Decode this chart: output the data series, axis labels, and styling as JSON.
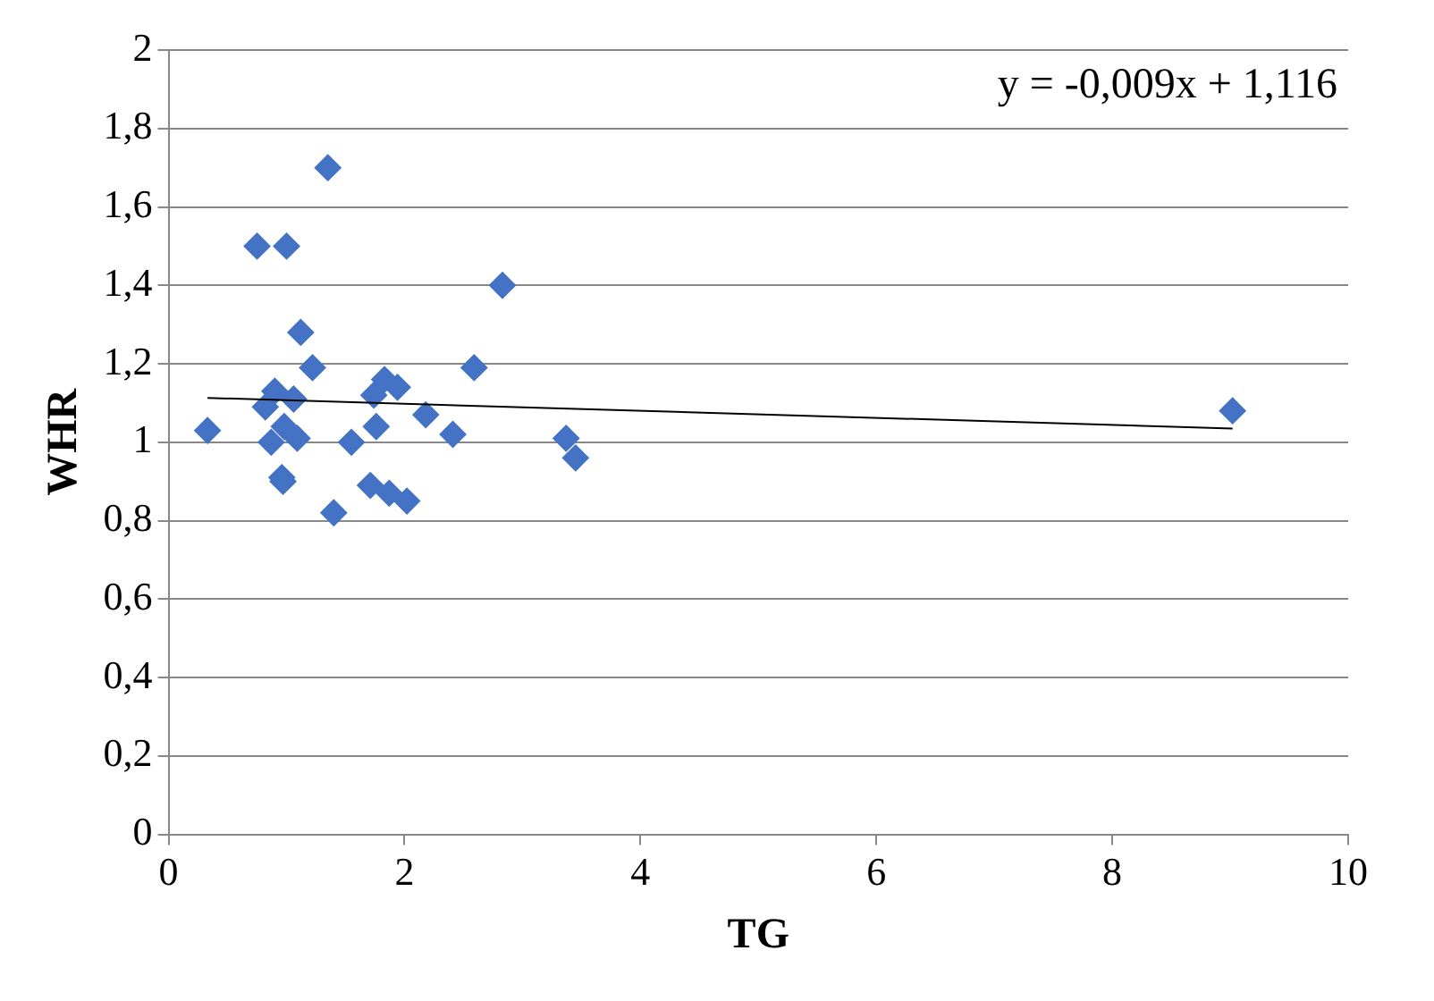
{
  "chart_data": {
    "type": "scatter",
    "xlabel": "TG",
    "ylabel": "WHR",
    "annotations": [
      "y = -0,009x + 1,116"
    ],
    "grid": "y",
    "legend": false,
    "series": [
      {
        "marker": "diamond",
        "color": "#4472c4",
        "x": [
          0.33,
          0.75,
          1.0,
          1.35,
          2.83,
          2.59,
          1.12,
          1.22,
          0.9,
          0.82,
          0.87,
          0.98,
          1.06,
          1.09,
          0.96,
          0.97,
          1.55,
          1.76,
          1.83,
          1.94,
          1.74,
          1.71,
          1.87,
          2.02,
          1.4,
          2.18,
          2.41,
          3.37,
          3.45,
          9.02
        ],
        "values": [
          1.03,
          1.5,
          1.5,
          1.7,
          1.4,
          1.19,
          1.28,
          1.19,
          1.13,
          1.09,
          1.0,
          1.04,
          1.11,
          1.01,
          0.91,
          0.9,
          1.0,
          1.04,
          1.16,
          1.14,
          1.12,
          0.89,
          0.87,
          0.85,
          0.82,
          1.07,
          1.02,
          1.01,
          0.96,
          1.08
        ]
      },
      {
        "type": "line",
        "marker": "none",
        "color": "#000000",
        "x": [
          0.33,
          9.02
        ],
        "values": [
          1.113,
          1.035
        ]
      }
    ],
    "xlim": [
      0,
      10
    ],
    "xticks": [
      0,
      2,
      4,
      6,
      8,
      10
    ],
    "ylim": [
      0,
      2
    ],
    "yticks": [
      0,
      {
        "value": 0.2,
        "label": "0,2"
      },
      {
        "value": 0.4,
        "label": "0,4"
      },
      {
        "value": 0.6,
        "label": "0,6"
      },
      {
        "value": 0.8,
        "label": "0,8"
      },
      1,
      {
        "value": 1.2,
        "label": "1,2"
      },
      {
        "value": 1.4,
        "label": "1,4"
      },
      {
        "value": 1.6,
        "label": "1,6"
      },
      {
        "value": 1.8,
        "label": "1,8"
      },
      2
    ]
  }
}
